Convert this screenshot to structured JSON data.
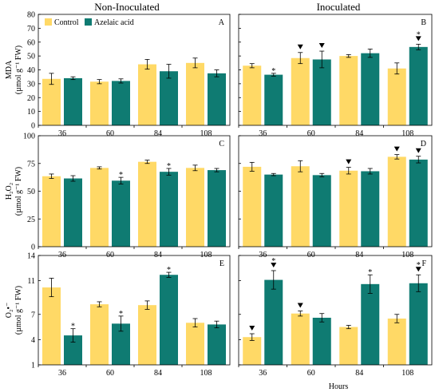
{
  "columns": [
    "Non-Inoculated",
    "Inoculated"
  ],
  "legend": [
    "Control",
    "Azelaic acid"
  ],
  "colors": {
    "control": "#ffd966",
    "azelaic": "#0f7b72"
  },
  "x_axis_label": "Hours",
  "rows": [
    {
      "label_main": "MDA",
      "label_unit": "(µmol g⁻¹ FW)"
    },
    {
      "label_main": "H₂O₂",
      "label_unit": "(µmol g⁻¹ FW)"
    },
    {
      "label_main": "O₂•⁻",
      "label_unit": "(µmol g⁻¹ FW)"
    }
  ],
  "chart_data": [
    {
      "panel": "A",
      "type": "bar",
      "categories": [
        "36",
        "60",
        "84",
        "108"
      ],
      "ylim": [
        0,
        80
      ],
      "yticks": [
        0,
        10,
        20,
        30,
        40,
        50,
        60,
        70,
        80
      ],
      "series": [
        {
          "name": "Control",
          "values": [
            33.5,
            31.5,
            44,
            45
          ],
          "errors": [
            4,
            1.5,
            3.5,
            3.5
          ]
        },
        {
          "name": "Azelaic acid",
          "values": [
            34,
            32,
            39,
            37.5
          ],
          "errors": [
            1,
            1.5,
            5,
            2.5
          ]
        }
      ],
      "stars": [],
      "triangles": []
    },
    {
      "panel": "B",
      "type": "bar",
      "categories": [
        "36",
        "60",
        "84",
        "108"
      ],
      "ylim": [
        0,
        80
      ],
      "yticks": [
        0,
        10,
        20,
        30,
        40,
        50,
        60,
        70,
        80
      ],
      "series": [
        {
          "name": "Control",
          "values": [
            43,
            48.5,
            50,
            41
          ],
          "errors": [
            1.5,
            4,
            1,
            4
          ]
        },
        {
          "name": "Azelaic acid",
          "values": [
            36.5,
            47.5,
            52,
            56.5
          ],
          "errors": [
            1,
            6,
            3,
            2
          ]
        }
      ],
      "stars": [
        [
          1,
          0
        ],
        [
          1,
          3
        ]
      ],
      "triangles": [
        [
          0,
          1
        ],
        [
          1,
          1
        ],
        [
          1,
          3
        ]
      ]
    },
    {
      "panel": "C",
      "type": "bar",
      "categories": [
        "36",
        "60",
        "84",
        "108"
      ],
      "ylim": [
        0,
        100
      ],
      "yticks": [
        0,
        25,
        50,
        75,
        100
      ],
      "series": [
        {
          "name": "Control",
          "values": [
            63.5,
            71,
            76.5,
            71
          ],
          "errors": [
            2,
            1,
            1.5,
            2.5
          ]
        },
        {
          "name": "Azelaic acid",
          "values": [
            61.5,
            59.5,
            67.5,
            69
          ],
          "errors": [
            2.5,
            3,
            3,
            1.5
          ]
        }
      ],
      "stars": [
        [
          1,
          1
        ],
        [
          1,
          2
        ]
      ],
      "triangles": []
    },
    {
      "panel": "D",
      "type": "bar",
      "categories": [
        "36",
        "60",
        "84",
        "108"
      ],
      "ylim": [
        0,
        100
      ],
      "yticks": [
        0,
        25,
        50,
        75,
        100
      ],
      "series": [
        {
          "name": "Control",
          "values": [
            72,
            72.5,
            68.5,
            81
          ],
          "errors": [
            4,
            5,
            3,
            2
          ]
        },
        {
          "name": "Azelaic acid",
          "values": [
            65,
            64.5,
            68,
            78.5
          ],
          "errors": [
            1,
            1.5,
            2.5,
            3
          ]
        }
      ],
      "stars": [],
      "triangles": [
        [
          0,
          2
        ],
        [
          0,
          3
        ],
        [
          1,
          3
        ]
      ]
    },
    {
      "panel": "E",
      "type": "bar",
      "categories": [
        "36",
        "60",
        "84",
        "108"
      ],
      "ylim": [
        1,
        14
      ],
      "yticks": [
        1,
        4,
        7,
        11,
        14
      ],
      "series": [
        {
          "name": "Control",
          "values": [
            10.2,
            8.2,
            8.1,
            6
          ],
          "errors": [
            1.1,
            0.3,
            0.5,
            0.5
          ]
        },
        {
          "name": "Azelaic acid",
          "values": [
            4.5,
            5.9,
            11.7,
            5.8
          ],
          "errors": [
            0.8,
            0.9,
            0.3,
            0.4
          ]
        }
      ],
      "stars": [
        [
          1,
          0
        ],
        [
          1,
          1
        ],
        [
          1,
          2
        ]
      ],
      "triangles": []
    },
    {
      "panel": "F",
      "type": "bar",
      "categories": [
        "36",
        "60",
        "84",
        "108"
      ],
      "ylim": [
        1,
        14
      ],
      "yticks": [
        1,
        4,
        7,
        11,
        14
      ],
      "series": [
        {
          "name": "Control",
          "values": [
            4.3,
            7.1,
            5.5,
            6.5
          ],
          "errors": [
            0.4,
            0.3,
            0.2,
            0.5
          ]
        },
        {
          "name": "Azelaic acid",
          "values": [
            11.1,
            6.6,
            10.6,
            10.7
          ],
          "errors": [
            1.1,
            0.5,
            1.1,
            1
          ]
        }
      ],
      "stars": [
        [
          1,
          0
        ],
        [
          1,
          2
        ],
        [
          1,
          3
        ]
      ],
      "triangles": [
        [
          0,
          0
        ],
        [
          1,
          0
        ],
        [
          0,
          1
        ],
        [
          1,
          3
        ]
      ]
    }
  ]
}
